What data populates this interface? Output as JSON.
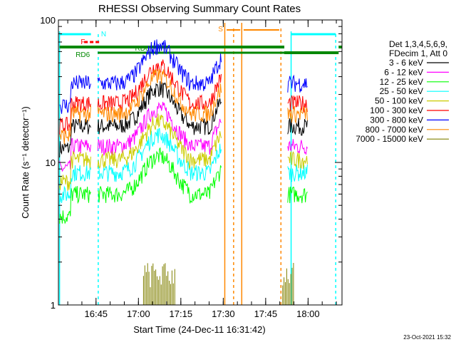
{
  "chart_data": {
    "type": "line",
    "title": "RHESSI Observing Summary Count Rates",
    "xlabel": "Start Time (24-Dec-11 16:31:42)",
    "ylabel": "Count Rate (s⁻¹ detector⁻¹)",
    "yscale": "log",
    "ylim": [
      1,
      100
    ],
    "xlim": [
      16.5283,
      18.2
    ],
    "x_ticks": [
      16.75,
      17.0,
      17.25,
      17.5,
      17.75,
      18.0
    ],
    "x_tick_labels": [
      "16:45",
      "17:00",
      "17:15",
      "17:30",
      "17:45",
      "18:00"
    ],
    "y_tick_labels": [
      "1",
      "10",
      "100"
    ],
    "legend": {
      "placement": "right",
      "header": [
        "Det 1,3,4,5,6,9,",
        "FDecim 1, Att 0"
      ]
    },
    "series": [
      {
        "name": "3 - 6 keV",
        "color": "#000000",
        "base": 18
      },
      {
        "name": "6 - 12 keV",
        "color": "#ff00ff",
        "base": 13
      },
      {
        "name": "12 - 25 keV",
        "color": "#00ff00",
        "base": 6
      },
      {
        "name": "25 - 50 keV",
        "color": "#00ffff",
        "base": 8.5
      },
      {
        "name": "50 - 100 keV",
        "color": "#cccc00",
        "base": 10.5
      },
      {
        "name": "100 - 300 keV",
        "color": "#ff0000",
        "base": 26
      },
      {
        "name": "300 - 800 keV",
        "color": "#0000ff",
        "base": 36
      },
      {
        "name": "800 - 7000 keV",
        "color": "#ff8800",
        "base": 22
      },
      {
        "name": "7000 - 15000 keV",
        "color": "#808000",
        "base": 1
      }
    ],
    "annotations": {
      "N": "N",
      "F": "F",
      "S": "S",
      "RD0": "RD0",
      "RD6": "RD6"
    },
    "timestamp": "23-Oct-2021 15:32"
  }
}
